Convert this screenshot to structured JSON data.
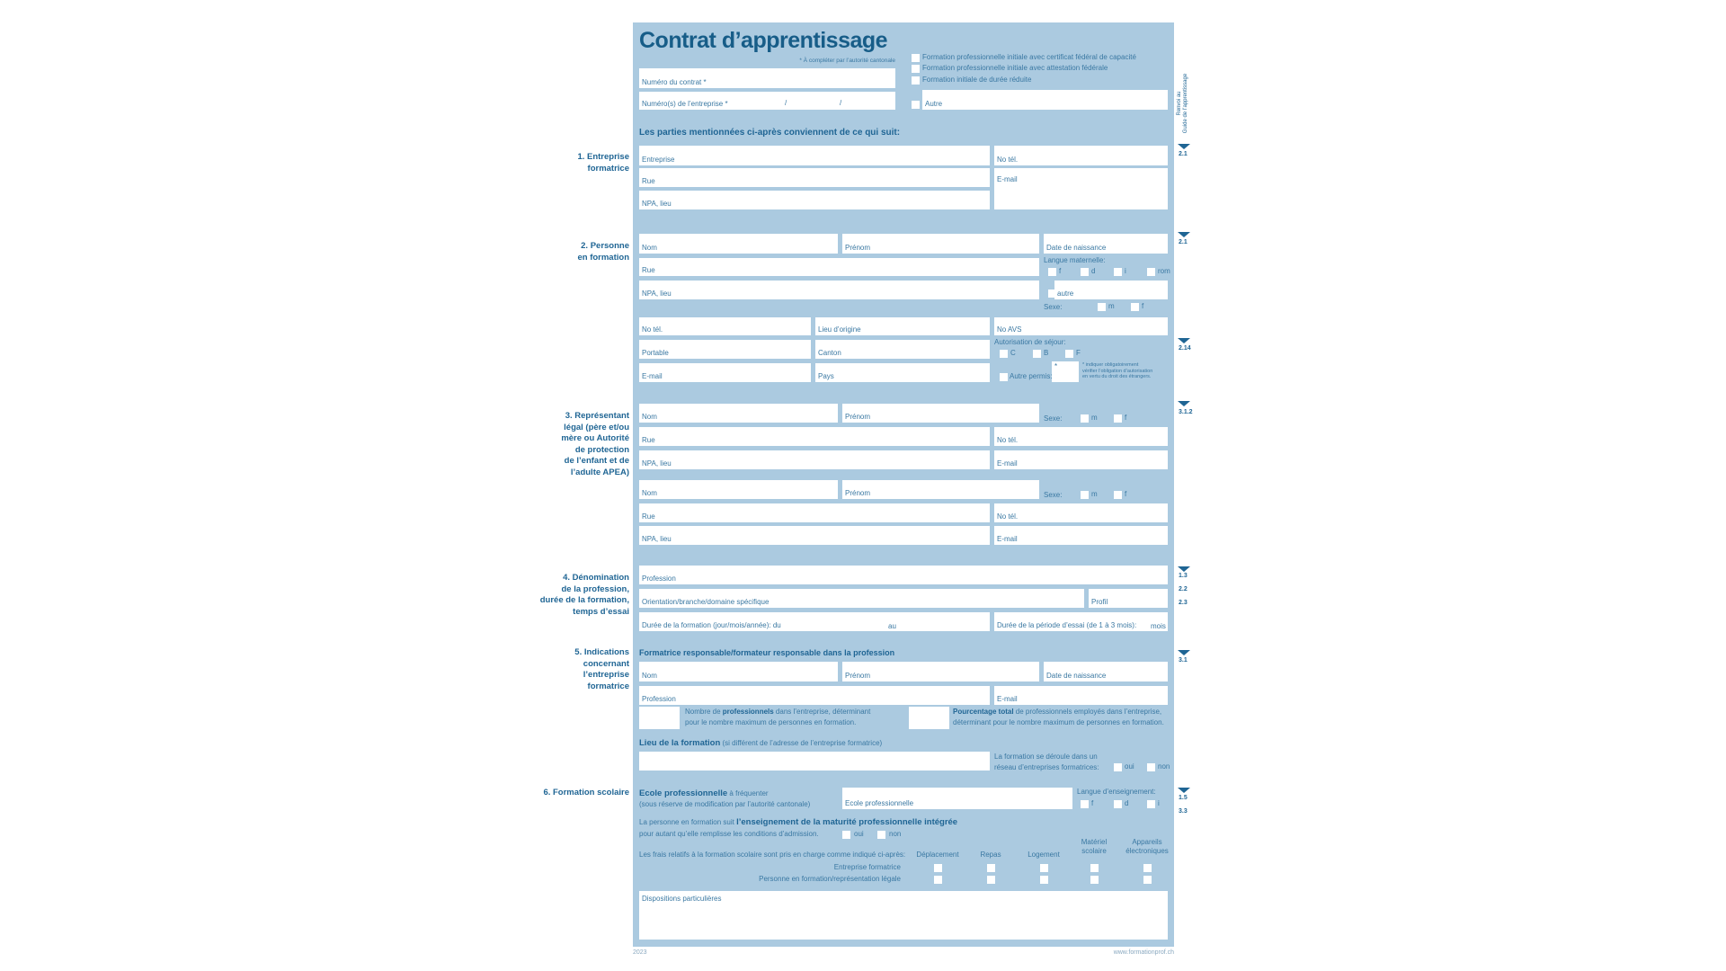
{
  "header": {
    "title": "Contrat d’apprentissage",
    "note": "* À compléter par l’autorité cantonale",
    "contract_number_label": "Numéro du contrat *",
    "company_numbers_label": "Numéro(s) de l’entreprise *",
    "slash": "/",
    "training_types": [
      "Formation professionnelle initiale avec certificat fédéral de capacité",
      "Formation professionnelle initiale avec attestation fédérale",
      "Formation initiale de durée réduite",
      "Autre"
    ]
  },
  "guide_ref": "Renvoi au\nGuide de l’apprentissage",
  "refs": [
    "2.1",
    "2.1",
    "2.14",
    "3.1.2",
    "1.3",
    "2.2",
    "2.3",
    "3.1",
    "1.5",
    "3.3"
  ],
  "intro": "Les parties mentionnées ci-après conviennent de ce qui suit:",
  "s1": {
    "title": "1. Entreprise\nformatrice",
    "entreprise": "Entreprise",
    "tel": "No tél.",
    "rue": "Rue",
    "npa": "NPA, lieu",
    "email": "E-mail"
  },
  "s2": {
    "title": "2. Personne\nen formation",
    "nom": "Nom",
    "prenom": "Prénom",
    "naissance": "Date de naissance",
    "rue": "Rue",
    "npa": "NPA, lieu",
    "langue": "Langue maternelle:",
    "langues": [
      "f",
      "d",
      "i",
      "rom"
    ],
    "autre": "autre",
    "sexe": "Sexe:",
    "sexes": [
      "m",
      "f"
    ],
    "tel": "No tél.",
    "origine": "Lieu d’origine",
    "avs": "No AVS",
    "portable": "Portable",
    "canton": "Canton",
    "autorisation": "Autorisation de séjour:",
    "permis": [
      "C",
      "B",
      "F"
    ],
    "email": "E-mail",
    "pays": "Pays",
    "autre_permis": "Autre permis:",
    "asterisk": "*",
    "footnote": "* indiquer obligatoirement\nvérifier l’obligation d’autorisation\nen vertu du droit des étrangers."
  },
  "s3": {
    "title": "3. Représentant\nlégal (père et/ou\nmère ou Autorité\nde protection\nde l’enfant et de\nl’adulte APEA)",
    "nom": "Nom",
    "prenom": "Prénom",
    "sexe": "Sexe:",
    "sexes": [
      "m",
      "f"
    ],
    "rue": "Rue",
    "tel": "No tél.",
    "npa": "NPA, lieu",
    "email": "E-mail"
  },
  "s4": {
    "title": "4. Dénomination\nde la profession,\ndurée de la formation,\ntemps d’essai",
    "profession": "Profession",
    "orientation": "Orientation/branche/domaine spécifique",
    "profil": "Profil",
    "duree": "Durée de la formation (jour/mois/année): du",
    "au": "au",
    "essai": "Durée de la période d’essai (de 1 à 3 mois):",
    "mois": "mois"
  },
  "s5": {
    "title": "5. Indications\nconcernant\nl’entreprise\nformatrice",
    "heading": "Formatrice responsable/formateur responsable dans la profession",
    "nom": "Nom",
    "prenom": "Prénom",
    "naissance": "Date de naissance",
    "profession": "Profession",
    "email": "E-mail",
    "nb_pre": "Nombre de ",
    "nb_bold": "professionnels",
    "nb_post": " dans l’entreprise, déterminant",
    "nb_line2": "pour le nombre maximum de personnes en formation.",
    "pct_bold": "Pourcentage total",
    "pct_post": " de professionnels employés dans l’entreprise,",
    "pct_line2": "déterminant pour le nombre maximum de personnes en formation.",
    "lieu_bold": "Lieu de la formation",
    "lieu_note": " (si différent de l’adresse de l’entreprise formatrice)",
    "reseau_1": "La formation se déroule dans un",
    "reseau_2": "réseau d’entreprises formatrices:",
    "oui": "oui",
    "non": "non"
  },
  "s6": {
    "title": "6. Formation scolaire",
    "ecole_bold": "Ecole professionnelle",
    "ecole_post": " à fréquenter",
    "ecole_note": "(sous réserve de modification par l’autorité cantonale)",
    "ecole_field": "Ecole professionnelle",
    "langue": "Langue d’enseignement:",
    "langues": [
      "f",
      "d",
      "i"
    ],
    "mat_pre": "La personne en formation suit ",
    "mat_bold": "l’enseignement de la maturité professionnelle intégrée",
    "mat_line2": "pour autant qu’elle remplisse les conditions d’admission.",
    "oui": "oui",
    "non": "non",
    "frais": "Les frais relatifs à la formation scolaire sont pris en charge comme indiqué ci-après:",
    "columns": [
      "Déplacement",
      "Repas",
      "Logement",
      "Matériel\nscolaire",
      "Appareils\nélectroniques"
    ],
    "rows": [
      "Entreprise formatrice",
      "Personne en formation/représentation légale"
    ],
    "dispositions": "Dispositions particulières"
  },
  "footer": {
    "year": "2023",
    "url": "www.formationprof.ch"
  },
  "colors": {
    "form_bg": "#abcae0",
    "text": "#1f6594",
    "field": "#ffffff"
  }
}
